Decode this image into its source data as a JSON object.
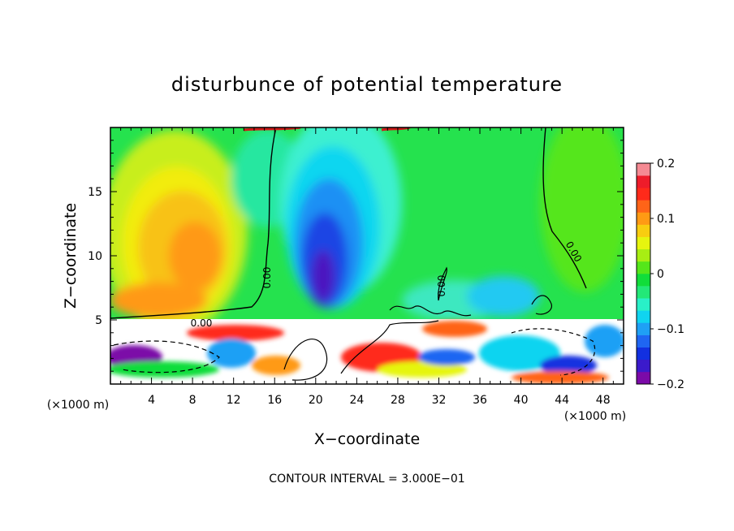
{
  "chart_data": {
    "type": "heatmap",
    "title": "disturbunce of potential temperature",
    "xlabel": "X−coordinate",
    "ylabel": "Z−coordinate",
    "x_unit_left": "(×1000 m)",
    "x_unit_right": "(×1000 m)",
    "xlim": [
      0,
      50
    ],
    "ylim": [
      0,
      20
    ],
    "x_ticks": [
      "4",
      "8",
      "12",
      "16",
      "20",
      "24",
      "28",
      "32",
      "36",
      "40",
      "44",
      "48"
    ],
    "y_ticks": [
      "5",
      "10",
      "15"
    ],
    "colorbar": {
      "min": -0.2,
      "max": 0.2,
      "labels": [
        "0.2",
        "0.1",
        "0",
        "−0.1",
        "−0.2"
      ],
      "colors": [
        "#7b0aa8",
        "#3b1acb",
        "#1230e0",
        "#1f66f2",
        "#1fa0f5",
        "#10d4f0",
        "#29f0c8",
        "#23e878",
        "#11dd3a",
        "#55e61a",
        "#a8ee13",
        "#e6f50f",
        "#f8cd10",
        "#ff9a14",
        "#ff6418",
        "#ff2a1a",
        "#ee1c2a",
        "#f58a93"
      ]
    },
    "contour_labels": [
      "0.00",
      "0.00",
      "0.00",
      "0.00"
    ],
    "grid": false
  },
  "footer": {
    "contour_interval": "CONTOUR INTERVAL = 3.000E−01"
  }
}
